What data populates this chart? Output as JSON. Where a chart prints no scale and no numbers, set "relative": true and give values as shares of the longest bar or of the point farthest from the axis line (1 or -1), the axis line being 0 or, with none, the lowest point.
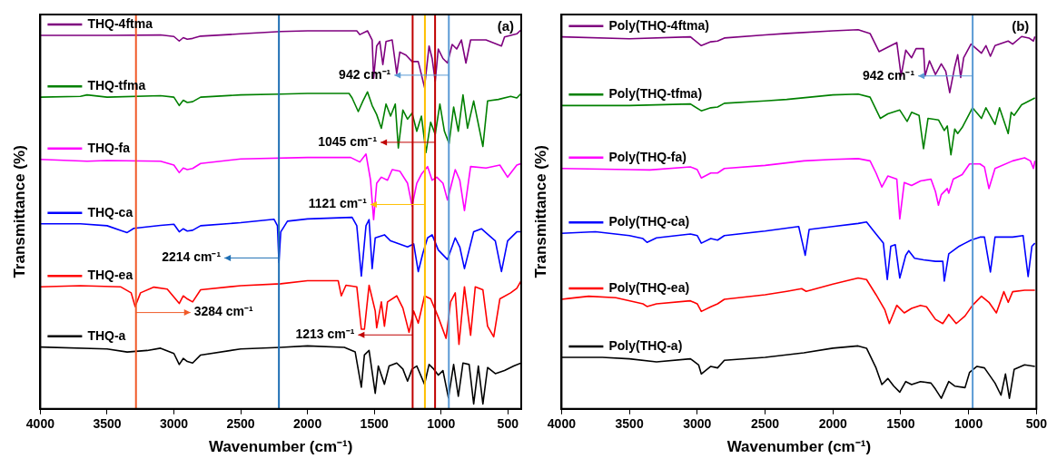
{
  "chart_data": [
    {
      "type": "line",
      "legend": "left",
      "title": "(a)",
      "xlabel": "Wavenumber (cm⁻¹)",
      "ylabel": "Transmittance (%)",
      "relative": true,
      "xlim": [
        4000,
        400
      ],
      "xticks": [
        4000,
        3500,
        3000,
        2500,
        2000,
        1500,
        1000,
        500
      ],
      "series": [
        {
          "name": "THQ-4ftma",
          "color": "#7f007f",
          "x": [
            4000,
            3500,
            3100,
            3000,
            2960,
            2930,
            2900,
            2860,
            2800,
            2500,
            2200,
            2000,
            1631,
            1608,
            1551,
            1516,
            1505,
            1482,
            1459,
            1436,
            1412,
            1366,
            1332,
            1309,
            1263,
            1217,
            1171,
            1124,
            1090,
            1067,
            1044,
            1021,
            986,
            952,
            917,
            883,
            848,
            814,
            779,
            664,
            548,
            525,
            433,
            400
          ],
          "values": [
            0.985,
            0.985,
            0.986,
            0.982,
            0.97,
            0.979,
            0.975,
            0.977,
            0.983,
            0.989,
            0.995,
            0.997,
            0.997,
            0.987,
            0.997,
            0.973,
            0.872,
            0.957,
            0.969,
            0.908,
            0.969,
            0.973,
            0.884,
            0.941,
            0.933,
            0.916,
            0.916,
            0.848,
            0.957,
            0.924,
            0.864,
            0.949,
            0.924,
            0.912,
            0.961,
            0.949,
            0.973,
            0.912,
            0.973,
            0.973,
            0.957,
            0.981,
            0.989,
            1.0
          ]
        },
        {
          "name": "THQ-tfma",
          "color": "#008000",
          "x": [
            4000,
            3700,
            3650,
            3500,
            3100,
            3000,
            2960,
            2930,
            2900,
            2860,
            2800,
            2500,
            2200,
            2000,
            1689,
            1666,
            1620,
            1585,
            1551,
            1516,
            1482,
            1447,
            1412,
            1378,
            1343,
            1320,
            1286,
            1251,
            1217,
            1182,
            1147,
            1113,
            1078,
            1044,
            1009,
            975,
            940,
            906,
            871,
            836,
            802,
            756,
            687,
            652,
            571,
            479,
            433,
            400
          ],
          "values": [
            0.822,
            0.824,
            0.828,
            0.822,
            0.826,
            0.822,
            0.8,
            0.814,
            0.808,
            0.81,
            0.822,
            0.828,
            0.83,
            0.832,
            0.832,
            0.82,
            0.784,
            0.812,
            0.836,
            0.8,
            0.776,
            0.74,
            0.804,
            0.772,
            0.804,
            0.688,
            0.788,
            0.764,
            0.78,
            0.732,
            0.772,
            0.676,
            0.756,
            0.724,
            0.804,
            0.732,
            0.7,
            0.796,
            0.732,
            0.828,
            0.74,
            0.812,
            0.692,
            0.812,
            0.816,
            0.824,
            0.82,
            0.832
          ]
        },
        {
          "name": "THQ-fa",
          "color": "#ff00ff",
          "x": [
            4000,
            3650,
            3500,
            3100,
            3000,
            2960,
            2930,
            2900,
            2860,
            2800,
            2500,
            2000,
            1677,
            1608,
            1562,
            1528,
            1505,
            1482,
            1447,
            1401,
            1366,
            1309,
            1251,
            1217,
            1182,
            1147,
            1101,
            1067,
            1032,
            986,
            952,
            894,
            860,
            825,
            779,
            664,
            560,
            502,
            433,
            400
          ],
          "values": [
            0.658,
            0.653,
            0.655,
            0.653,
            0.643,
            0.623,
            0.635,
            0.631,
            0.634,
            0.647,
            0.659,
            0.663,
            0.663,
            0.651,
            0.672,
            0.603,
            0.499,
            0.595,
            0.611,
            0.603,
            0.631,
            0.627,
            0.595,
            0.535,
            0.595,
            0.619,
            0.639,
            0.603,
            0.611,
            0.595,
            0.551,
            0.631,
            0.603,
            0.523,
            0.639,
            0.635,
            0.643,
            0.611,
            0.643,
            0.647
          ]
        },
        {
          "name": "THQ-ca",
          "color": "#0000ff",
          "x": [
            4000,
            3700,
            3500,
            3400,
            3350,
            3300,
            3100,
            3000,
            2960,
            2930,
            2900,
            2860,
            2800,
            2500,
            2250,
            2225,
            2214,
            2200,
            2150,
            2000,
            1666,
            1631,
            1597,
            1562,
            1539,
            1516,
            1493,
            1424,
            1378,
            1251,
            1205,
            1171,
            1136,
            1101,
            1067,
            1021,
            952,
            894,
            860,
            825,
            756,
            698,
            594,
            548,
            502,
            433,
            400
          ],
          "values": [
            0.488,
            0.488,
            0.483,
            0.471,
            0.465,
            0.476,
            0.484,
            0.487,
            0.467,
            0.475,
            0.469,
            0.471,
            0.483,
            0.491,
            0.5,
            0.483,
            0.386,
            0.467,
            0.495,
            0.501,
            0.505,
            0.483,
            0.35,
            0.483,
            0.499,
            0.37,
            0.451,
            0.459,
            0.443,
            0.427,
            0.435,
            0.362,
            0.411,
            0.451,
            0.459,
            0.419,
            0.394,
            0.451,
            0.427,
            0.37,
            0.467,
            0.475,
            0.443,
            0.362,
            0.443,
            0.467,
            0.467
          ]
        },
        {
          "name": "THQ-ea",
          "color": "#ff0000",
          "x": [
            4000,
            3700,
            3400,
            3320,
            3290,
            3250,
            3150,
            3050,
            2960,
            2930,
            2900,
            2860,
            2800,
            2500,
            2200,
            2000,
            1770,
            1747,
            1712,
            1631,
            1597,
            1574,
            1539,
            1493,
            1482,
            1447,
            1424,
            1401,
            1332,
            1286,
            1240,
            1205,
            1171,
            1124,
            1078,
            1021,
            963,
            929,
            894,
            866,
            825,
            779,
            744,
            687,
            652,
            606,
            560,
            479,
            433,
            400
          ],
          "values": [
            0.322,
            0.325,
            0.322,
            0.306,
            0.27,
            0.306,
            0.321,
            0.316,
            0.278,
            0.298,
            0.29,
            0.282,
            0.314,
            0.325,
            0.33,
            0.338,
            0.338,
            0.298,
            0.326,
            0.322,
            0.21,
            0.21,
            0.326,
            0.258,
            0.214,
            0.282,
            0.218,
            0.282,
            0.298,
            0.266,
            0.202,
            0.258,
            0.226,
            0.298,
            0.29,
            0.242,
            0.186,
            0.282,
            0.306,
            0.17,
            0.322,
            0.194,
            0.322,
            0.314,
            0.218,
            0.19,
            0.29,
            0.306,
            0.318,
            0.338
          ]
        },
        {
          "name": "THQ-a",
          "color": "#000000",
          "x": [
            4000,
            3500,
            3350,
            3200,
            3100,
            3000,
            2960,
            2930,
            2900,
            2860,
            2800,
            2500,
            2200,
            2000,
            1724,
            1643,
            1597,
            1574,
            1539,
            1493,
            1470,
            1424,
            1389,
            1332,
            1286,
            1251,
            1217,
            1182,
            1124,
            1090,
            1055,
            1021,
            986,
            945,
            906,
            871,
            836,
            790,
            756,
            721,
            687,
            652,
            594,
            525,
            456,
            400
          ],
          "values": [
            0.163,
            0.158,
            0.15,
            0.154,
            0.16,
            0.146,
            0.117,
            0.133,
            0.125,
            0.121,
            0.142,
            0.158,
            0.162,
            0.166,
            0.162,
            0.15,
            0.057,
            0.142,
            0.154,
            0.041,
            0.113,
            0.065,
            0.113,
            0.121,
            0.105,
            0.073,
            0.105,
            0.113,
            0.065,
            0.117,
            0.105,
            0.089,
            0.101,
            0.029,
            0.117,
            0.033,
            0.121,
            0.117,
            0.013,
            0.113,
            0.013,
            0.109,
            0.093,
            0.101,
            0.113,
            0.121
          ]
        }
      ],
      "ref_lines": [
        {
          "axis": "x",
          "value": 3284,
          "color": "#f05a28"
        },
        {
          "axis": "x",
          "value": 2214,
          "color": "#1f6fb4"
        },
        {
          "axis": "x",
          "value": 1213,
          "color": "#c00000"
        },
        {
          "axis": "x",
          "value": 1121,
          "color": "#ffc000"
        },
        {
          "axis": "x",
          "value": 1045,
          "color": "#c00000"
        },
        {
          "axis": "x",
          "value": 942,
          "color": "#5b9bd5"
        }
      ],
      "annotations": [
        {
          "text": "942 cm⁻¹",
          "x": 942,
          "y": 0.88
        },
        {
          "text": "1045 cm⁻¹",
          "x": 1045,
          "y": 0.703
        },
        {
          "text": "1121 cm⁻¹",
          "x": 1121,
          "y": 0.539
        },
        {
          "text": "2214 cm⁻¹",
          "x": 2214,
          "y": 0.398
        },
        {
          "text": "3284 cm⁻¹",
          "x": 3284,
          "y": 0.254
        },
        {
          "text": "1213 cm⁻¹",
          "x": 1213,
          "y": 0.195
        }
      ]
    },
    {
      "type": "line",
      "legend": "left",
      "title": "(b)",
      "xlabel": "Wavenumber (cm⁻¹)",
      "ylabel": "Transmittance (%)",
      "relative": true,
      "xlim": [
        4000,
        500
      ],
      "xticks": [
        4000,
        3500,
        3000,
        2500,
        2000,
        1500,
        1000,
        500
      ],
      "series": [
        {
          "name": "Poly(THQ-4ftma)",
          "color": "#7f007f",
          "x": [
            4000,
            3500,
            3050,
            2970,
            2900,
            2850,
            2800,
            2500,
            2340,
            2000,
            1814,
            1726,
            1660,
            1595,
            1529,
            1497,
            1463,
            1420,
            1387,
            1332,
            1321,
            1288,
            1244,
            1201,
            1168,
            1139,
            1102,
            1080,
            1058,
            1036,
            982,
            905,
            872,
            839,
            805,
            708,
            675,
            609,
            555,
            522,
            511
          ],
          "values": [
            0.981,
            0.976,
            0.981,
            0.958,
            0.968,
            0.97,
            0.978,
            0.986,
            0.99,
            0.997,
            1.0,
            0.99,
            0.942,
            0.954,
            0.966,
            0.878,
            0.946,
            0.926,
            0.95,
            0.95,
            0.878,
            0.918,
            0.882,
            0.91,
            0.89,
            0.834,
            0.902,
            0.934,
            0.874,
            0.926,
            0.962,
            0.938,
            0.958,
            0.93,
            0.958,
            0.97,
            0.962,
            0.982,
            0.978,
            0.97,
            0.982
          ]
        },
        {
          "name": "Poly(THQ-tfma)",
          "color": "#008000",
          "x": [
            4000,
            3500,
            3050,
            2970,
            2900,
            2850,
            2800,
            2500,
            2340,
            2000,
            1814,
            1726,
            1650,
            1595,
            1507,
            1453,
            1420,
            1365,
            1332,
            1299,
            1222,
            1179,
            1157,
            1130,
            1102,
            1080,
            1047,
            971,
            905,
            872,
            805,
            772,
            708,
            686,
            664,
            609,
            511
          ],
          "values": [
            0.8,
            0.8,
            0.804,
            0.786,
            0.794,
            0.796,
            0.806,
            0.812,
            0.816,
            0.828,
            0.83,
            0.822,
            0.766,
            0.778,
            0.788,
            0.758,
            0.782,
            0.774,
            0.686,
            0.766,
            0.762,
            0.734,
            0.746,
            0.67,
            0.738,
            0.726,
            0.742,
            0.794,
            0.766,
            0.794,
            0.75,
            0.794,
            0.726,
            0.782,
            0.774,
            0.802,
            0.82
          ]
        },
        {
          "name": "Poly(THQ-fa)",
          "color": "#ff00ff",
          "x": [
            4000,
            3500,
            3350,
            3050,
            3000,
            2970,
            2900,
            2850,
            2800,
            2500,
            2214,
            2000,
            1814,
            1726,
            1682,
            1639,
            1595,
            1529,
            1507,
            1474,
            1420,
            1354,
            1277,
            1244,
            1222,
            1201,
            1157,
            1146,
            1113,
            1047,
            993,
            916,
            883,
            850,
            805,
            675,
            587,
            544,
            522,
            511
          ],
          "values": [
            0.634,
            0.631,
            0.63,
            0.638,
            0.631,
            0.609,
            0.622,
            0.622,
            0.634,
            0.642,
            0.654,
            0.658,
            0.66,
            0.654,
            0.622,
            0.585,
            0.614,
            0.606,
            0.501,
            0.597,
            0.589,
            0.601,
            0.606,
            0.573,
            0.537,
            0.565,
            0.581,
            0.569,
            0.606,
            0.618,
            0.646,
            0.646,
            0.638,
            0.581,
            0.634,
            0.654,
            0.662,
            0.654,
            0.634,
            0.654
          ]
        },
        {
          "name": "Poly(THQ-ca)",
          "color": "#0000ff",
          "x": [
            4000,
            3750,
            3500,
            3400,
            3370,
            3300,
            3050,
            3000,
            2970,
            2900,
            2850,
            2800,
            2500,
            2252,
            2219,
            2204,
            2175,
            2000,
            1814,
            1752,
            1682,
            1628,
            1599,
            1573,
            1540,
            1507,
            1463,
            1441,
            1398,
            1332,
            1244,
            1190,
            1179,
            1146,
            1069,
            1026,
            982,
            916,
            883,
            839,
            805,
            675,
            598,
            561,
            533,
            511
          ],
          "values": [
            0.463,
            0.467,
            0.457,
            0.449,
            0.439,
            0.451,
            0.461,
            0.457,
            0.437,
            0.449,
            0.445,
            0.457,
            0.469,
            0.481,
            0.429,
            0.405,
            0.473,
            0.481,
            0.489,
            0.493,
            0.461,
            0.437,
            0.341,
            0.429,
            0.433,
            0.345,
            0.405,
            0.417,
            0.397,
            0.393,
            0.389,
            0.389,
            0.337,
            0.409,
            0.429,
            0.437,
            0.445,
            0.453,
            0.453,
            0.361,
            0.453,
            0.453,
            0.457,
            0.349,
            0.429,
            0.437
          ]
        },
        {
          "name": "Poly(THQ-ea)",
          "color": "#ff0000",
          "x": [
            4000,
            3950,
            3800,
            3600,
            3400,
            3370,
            3300,
            3050,
            3000,
            2970,
            2900,
            2850,
            2800,
            2500,
            2340,
            2230,
            2197,
            2000,
            1814,
            1752,
            1682,
            1617,
            1584,
            1529,
            1474,
            1420,
            1354,
            1310,
            1244,
            1190,
            1146,
            1091,
            1026,
            971,
            905,
            850,
            795,
            740,
            708,
            675,
            587,
            511
          ],
          "values": [
            0.289,
            0.291,
            0.297,
            0.293,
            0.277,
            0.27,
            0.277,
            0.285,
            0.277,
            0.257,
            0.269,
            0.277,
            0.289,
            0.301,
            0.31,
            0.317,
            0.31,
            0.329,
            0.345,
            0.341,
            0.301,
            0.261,
            0.225,
            0.273,
            0.253,
            0.265,
            0.273,
            0.269,
            0.236,
            0.225,
            0.249,
            0.225,
            0.245,
            0.273,
            0.297,
            0.281,
            0.253,
            0.309,
            0.281,
            0.309,
            0.313,
            0.313
          ]
        },
        {
          "name": "Poly(THQ-a)",
          "color": "#000000",
          "x": [
            4000,
            3700,
            3500,
            3300,
            3050,
            2990,
            2970,
            2900,
            2850,
            2800,
            2500,
            2214,
            2000,
            1814,
            1752,
            1682,
            1639,
            1595,
            1551,
            1507,
            1463,
            1420,
            1354,
            1277,
            1244,
            1201,
            1146,
            1102,
            1026,
            993,
            938,
            883,
            805,
            761,
            728,
            699,
            664,
            587,
            511
          ],
          "values": [
            0.136,
            0.136,
            0.132,
            0.124,
            0.132,
            0.116,
            0.092,
            0.112,
            0.108,
            0.128,
            0.136,
            0.148,
            0.16,
            0.166,
            0.16,
            0.108,
            0.064,
            0.08,
            0.06,
            0.044,
            0.072,
            0.064,
            0.072,
            0.068,
            0.052,
            0.028,
            0.072,
            0.06,
            0.056,
            0.096,
            0.112,
            0.108,
            0.068,
            0.036,
            0.092,
            0.028,
            0.104,
            0.116,
            0.112
          ]
        }
      ],
      "ref_lines": [
        {
          "axis": "x",
          "value": 970,
          "color": "#5b9bd5"
        }
      ],
      "annotations": [
        {
          "text": "942 cm⁻¹",
          "x": 970,
          "y": 0.878
        }
      ]
    }
  ]
}
